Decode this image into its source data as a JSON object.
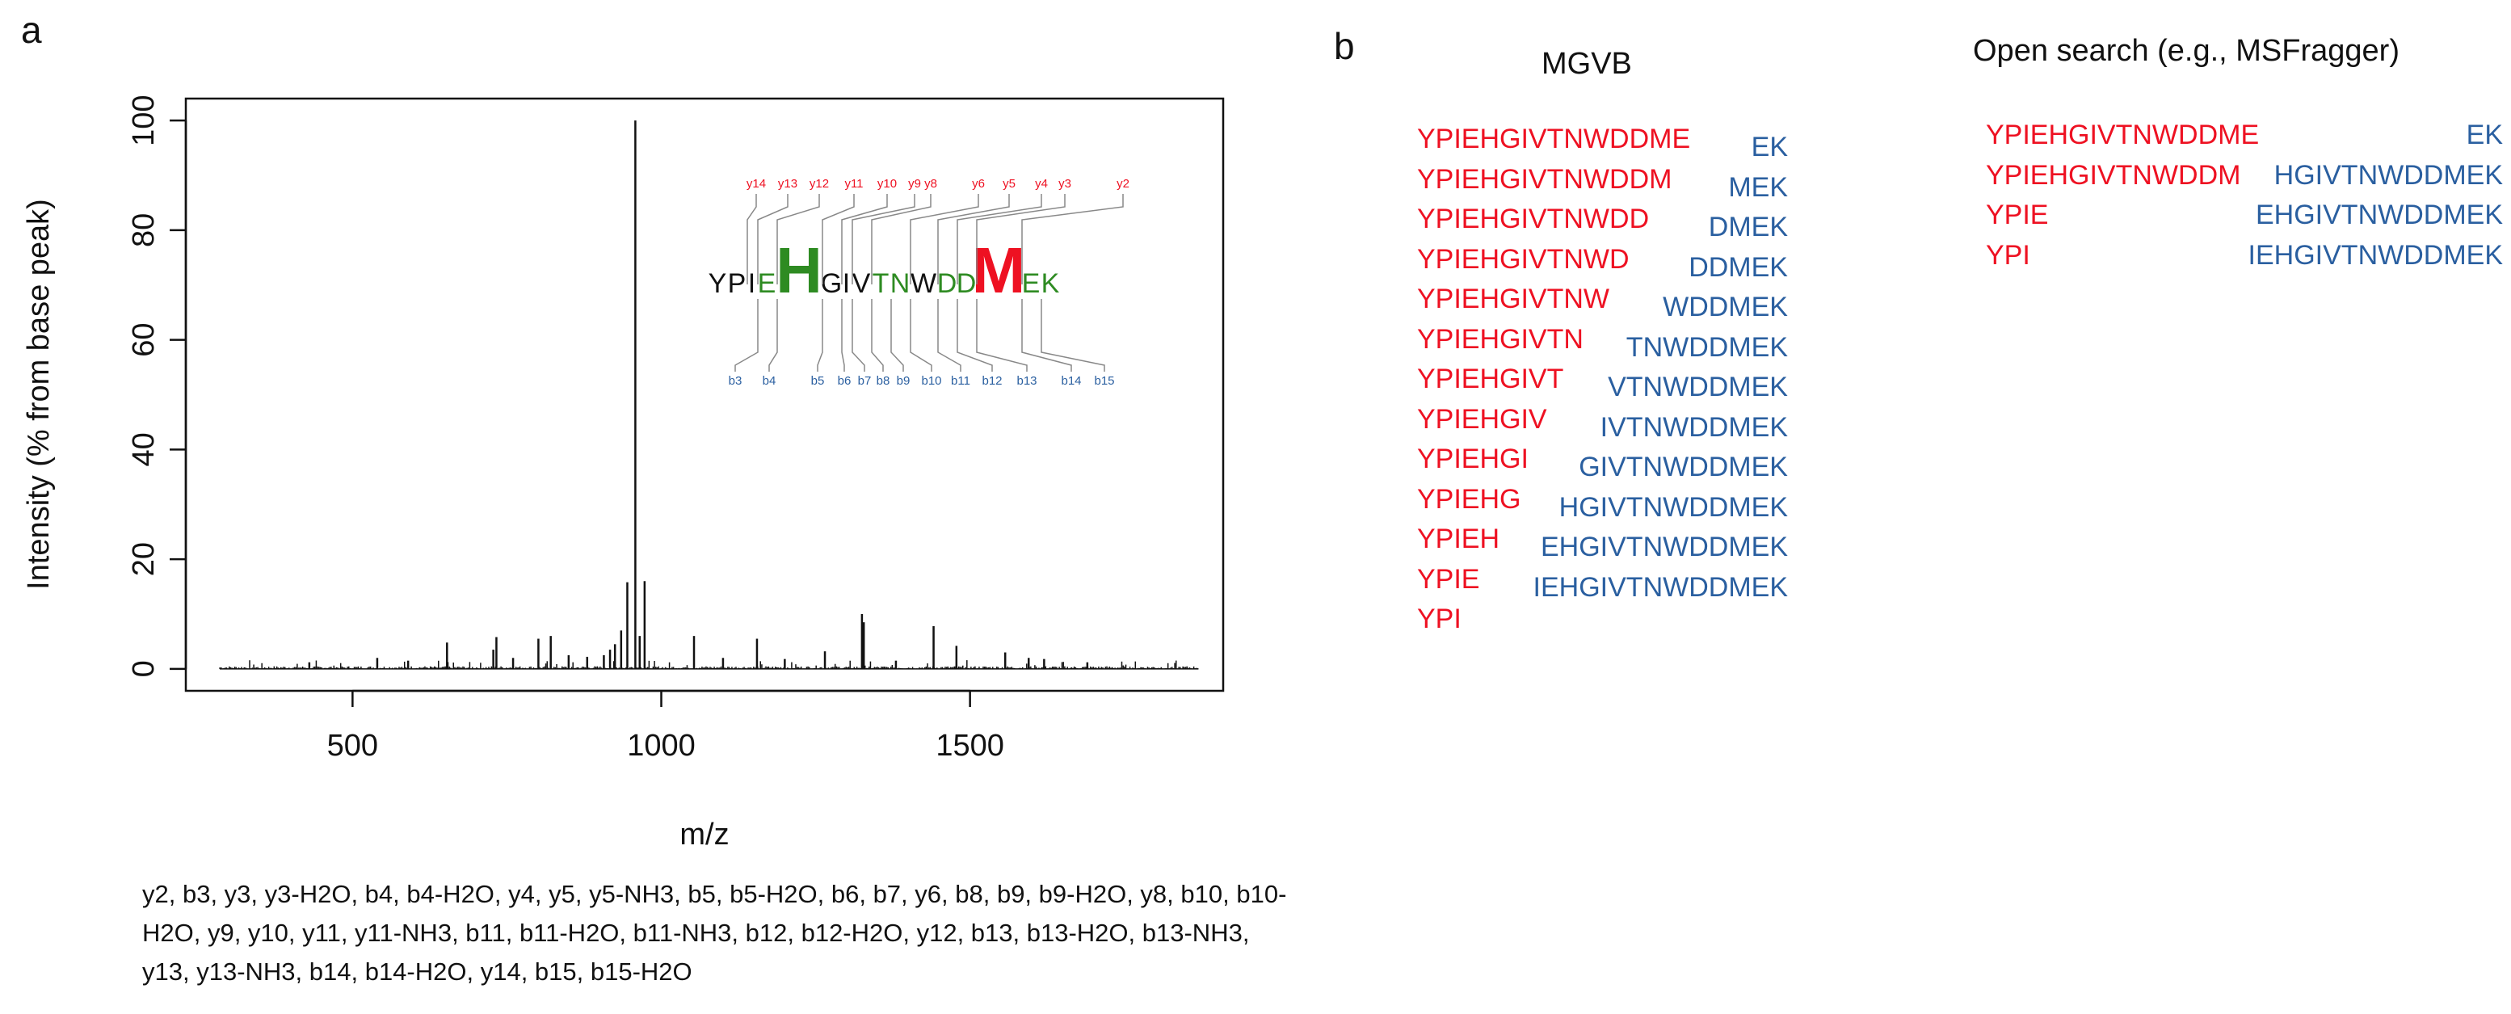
{
  "panel_a_label": "a",
  "panel_b_label": "b",
  "chart_data": {
    "type": "bar",
    "title": "",
    "xlabel": "m/z",
    "ylabel": "Intensity (% from base peak)",
    "xlim": [
      230,
      1910
    ],
    "ylim": [
      -4,
      104
    ],
    "xticks": [
      500,
      1000,
      1500
    ],
    "yticks": [
      0,
      20,
      40,
      60,
      80,
      100
    ],
    "grid": false,
    "major_peaks": [
      {
        "mz": 958,
        "intensity": 100
      },
      {
        "mz": 945,
        "intensity": 15.8
      },
      {
        "mz": 973,
        "intensity": 16
      },
      {
        "mz": 935,
        "intensity": 7
      },
      {
        "mz": 965,
        "intensity": 6
      },
      {
        "mz": 925,
        "intensity": 4.5
      },
      {
        "mz": 917,
        "intensity": 3.5
      },
      {
        "mz": 907,
        "intensity": 2.5
      },
      {
        "mz": 1325,
        "intensity": 10
      },
      {
        "mz": 1328,
        "intensity": 8.5
      },
      {
        "mz": 1441,
        "intensity": 7.8
      },
      {
        "mz": 1478,
        "intensity": 4.2
      },
      {
        "mz": 1053,
        "intensity": 6
      },
      {
        "mz": 1155,
        "intensity": 5.5
      },
      {
        "mz": 733,
        "intensity": 5.8
      },
      {
        "mz": 728,
        "intensity": 3.5
      },
      {
        "mz": 821,
        "intensity": 6
      },
      {
        "mz": 801,
        "intensity": 5.5
      },
      {
        "mz": 653,
        "intensity": 4.8
      },
      {
        "mz": 1557,
        "intensity": 3
      },
      {
        "mz": 1265,
        "intensity": 3.2
      },
      {
        "mz": 1100,
        "intensity": 2
      },
      {
        "mz": 1595,
        "intensity": 2
      },
      {
        "mz": 850,
        "intensity": 2.5
      },
      {
        "mz": 880,
        "intensity": 2.2
      },
      {
        "mz": 760,
        "intensity": 2
      },
      {
        "mz": 1620,
        "intensity": 1.8
      },
      {
        "mz": 540,
        "intensity": 2
      },
      {
        "mz": 590,
        "intensity": 1.5
      },
      {
        "mz": 1200,
        "intensity": 1.8
      },
      {
        "mz": 1380,
        "intensity": 1.5
      },
      {
        "mz": 1690,
        "intensity": 1.2
      },
      {
        "mz": 430,
        "intensity": 1.2
      }
    ],
    "noise_range": [
      285,
      1870
    ],
    "inset": {
      "sequence": [
        {
          "aa": "Y",
          "color": "#111111",
          "size": "normal"
        },
        {
          "aa": "P",
          "color": "#111111",
          "size": "normal"
        },
        {
          "aa": "I",
          "color": "#111111",
          "size": "normal"
        },
        {
          "aa": "E",
          "color": "#2e8b22",
          "size": "normal"
        },
        {
          "aa": "H",
          "color": "#2e8b22",
          "size": "large"
        },
        {
          "aa": "G",
          "color": "#111111",
          "size": "normal"
        },
        {
          "aa": "I",
          "color": "#111111",
          "size": "normal"
        },
        {
          "aa": "V",
          "color": "#111111",
          "size": "normal"
        },
        {
          "aa": "T",
          "color": "#2e8b22",
          "size": "normal"
        },
        {
          "aa": "N",
          "color": "#2e8b22",
          "size": "normal"
        },
        {
          "aa": "W",
          "color": "#111111",
          "size": "normal"
        },
        {
          "aa": "D",
          "color": "#2e8b22",
          "size": "normal"
        },
        {
          "aa": "D",
          "color": "#2e8b22",
          "size": "normal"
        },
        {
          "aa": "M",
          "color": "#ee1122",
          "size": "large"
        },
        {
          "aa": "E",
          "color": "#2e8b22",
          "size": "normal"
        },
        {
          "aa": "K",
          "color": "#2e8b22",
          "size": "normal"
        }
      ],
      "y_ions": [
        {
          "label": "y14",
          "after": 2
        },
        {
          "label": "y13",
          "after": 3
        },
        {
          "label": "y12",
          "after": 4
        },
        {
          "label": "y11",
          "after": 5
        },
        {
          "label": "y10",
          "after": 6
        },
        {
          "label": "y9",
          "after": 7
        },
        {
          "label": "y8",
          "after": 8
        },
        {
          "label": "y6",
          "after": 10
        },
        {
          "label": "y5",
          "after": 11
        },
        {
          "label": "y4",
          "after": 12
        },
        {
          "label": "y3",
          "after": 13
        },
        {
          "label": "y2",
          "after": 14
        }
      ],
      "b_ions": [
        {
          "label": "b3",
          "after": 3
        },
        {
          "label": "b4",
          "after": 4
        },
        {
          "label": "b5",
          "after": 5
        },
        {
          "label": "b6",
          "after": 6
        },
        {
          "label": "b7",
          "after": 7
        },
        {
          "label": "b8",
          "after": 8
        },
        {
          "label": "b9",
          "after": 9
        },
        {
          "label": "b10",
          "after": 10
        },
        {
          "label": "b11",
          "after": 11
        },
        {
          "label": "b12",
          "after": 12
        },
        {
          "label": "b13",
          "after": 13
        },
        {
          "label": "b14",
          "after": 14
        },
        {
          "label": "b15",
          "after": 15
        }
      ]
    },
    "ion_label_color_y": "#ee1122",
    "ion_label_color_b": "#2a5fa0"
  },
  "ion_list_text": "y2, b3, y3, y3-H2O, b4, b4-H2O, y4, y5, y5-NH3, b5, b5-H2O, b6, b7, y6, b8, b9, b9-H2O, y8, b10, b10-H2O, y9, y10, y11, y11-NH3, b11, b11-H2O, b11-NH3, b12, b12-H2O, y12, b13, b13-H2O, b13-NH3, y13, y13-NH3, b14, b14-H2O, y14, b15, b15-H2O",
  "mgvb": {
    "title": "MGVB",
    "left": [
      "YPIEHGIVTNWDDME",
      "YPIEHGIVTNWDDM",
      "YPIEHGIVTNWDD",
      "YPIEHGIVTNWD",
      "YPIEHGIVTNW",
      "YPIEHGIVTN",
      "YPIEHGIVT",
      "YPIEHGIV",
      "YPIEHGI",
      "YPIEHG",
      "YPIEH",
      "YPIE",
      "YPI"
    ],
    "right": [
      "EK",
      "MEK",
      "DMEK",
      "DDMEK",
      "WDDMEK",
      "TNWDDMEK",
      "VTNWDDMEK",
      "IVTNWDDMEK",
      "GIVTNWDDMEK",
      "HGIVTNWDDMEK",
      "EHGIVTNWDDMEK",
      "IEHGIVTNWDDMEK"
    ]
  },
  "open_search": {
    "title": "Open search (e.g., MSFragger)",
    "left": [
      "YPIEHGIVTNWDDME",
      "YPIEHGIVTNWDDM",
      "YPIE",
      "YPI"
    ],
    "right": [
      "EK",
      "HGIVTNWDDMEK",
      "EHGIVTNWDDMEK",
      "IEHGIVTNWDDMEK"
    ]
  }
}
